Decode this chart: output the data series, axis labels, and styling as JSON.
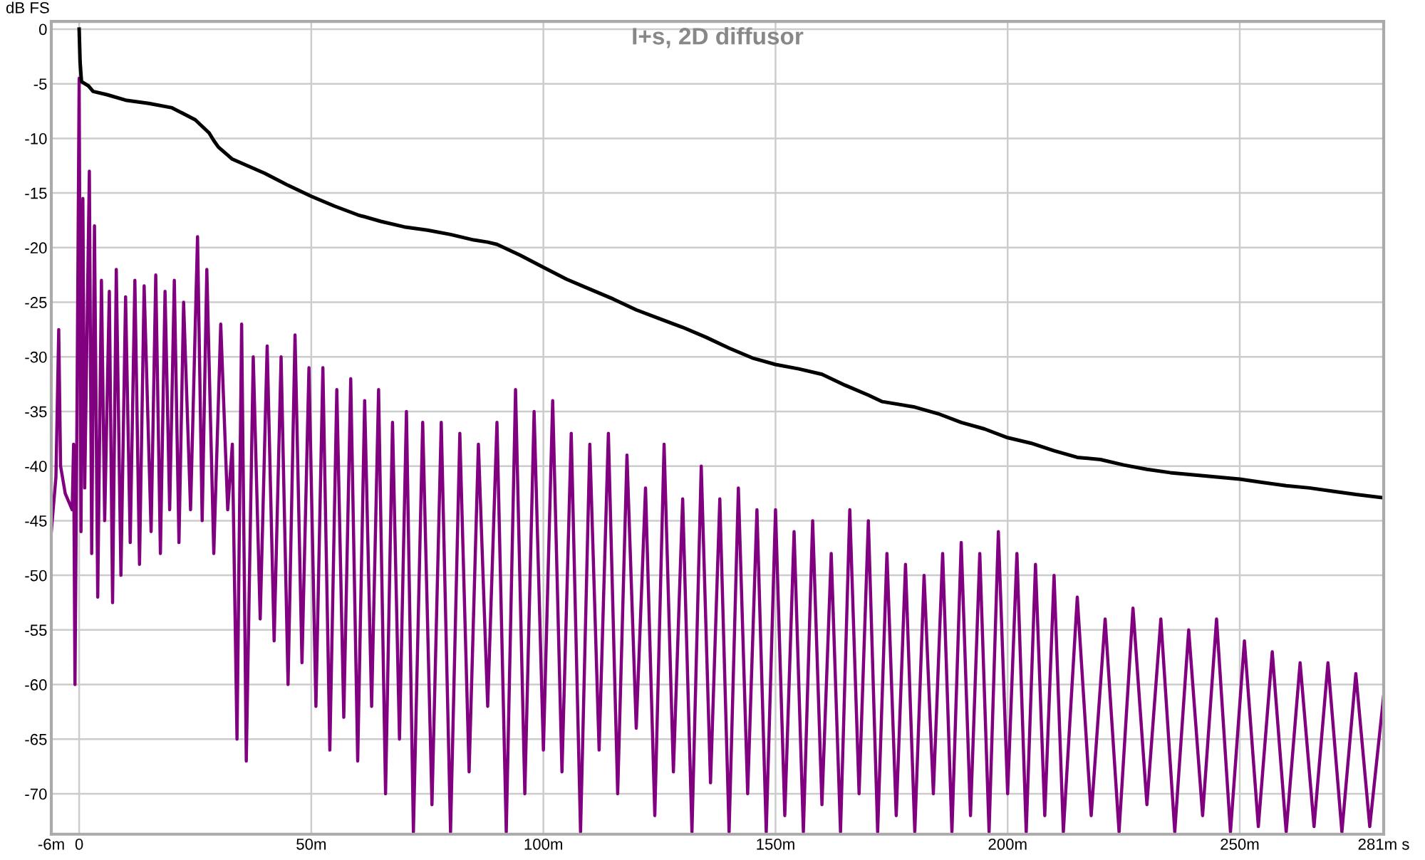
{
  "chart_data": {
    "type": "line",
    "title": "I+s, 2D diffusor",
    "ylabel": "dB FS",
    "xlim": [
      -6,
      281
    ],
    "xticks": [
      {
        "value": -6,
        "label": "-6m"
      },
      0,
      {
        "value": 50,
        "label": "50m"
      },
      {
        "value": 100,
        "label": "100m"
      },
      {
        "value": 150,
        "label": "150m"
      },
      {
        "value": 200,
        "label": "200m"
      },
      {
        "value": 250,
        "label": "250m"
      },
      {
        "value": 281,
        "label": "281m s"
      }
    ],
    "ylim": [
      -73.7,
      0.7
    ],
    "yticks": [
      0,
      -5,
      -10,
      -15,
      -20,
      -25,
      -30,
      -35,
      -40,
      -45,
      -50,
      -55,
      -60,
      -65,
      -70
    ],
    "grid": true,
    "legend": false,
    "marker": "none",
    "line_style": "solid",
    "series": [
      {
        "color": "#800080",
        "x": [
          -6,
          -5,
          -4.4,
          -4,
          -3,
          -1.5,
          -1.2,
          -0.9,
          -0.5,
          0,
          0.4,
          0.8,
          1.2,
          2.2,
          2.7,
          3.3,
          4,
          4.8,
          5.5,
          6.5,
          7.2,
          8,
          9,
          10,
          11,
          12,
          13,
          14,
          15.5,
          16.5,
          17.5,
          18.5,
          19.5,
          20.5,
          21.5,
          22.5,
          24,
          25.5,
          26.5,
          27.5,
          29,
          30.5,
          32,
          33,
          34,
          35,
          36,
          37.5,
          39,
          40.5,
          42,
          43.5,
          45,
          46.5,
          48,
          49.5,
          51,
          52.5,
          54,
          55.5,
          57,
          58.5,
          60,
          61.5,
          63,
          64.5,
          66,
          67.5,
          69,
          70.5,
          72,
          74,
          76,
          78,
          80,
          82,
          84,
          86,
          88,
          90,
          92,
          94,
          96,
          98,
          100,
          102,
          104,
          106,
          108,
          110,
          112,
          114,
          116,
          118,
          120,
          122,
          124,
          126,
          128,
          130,
          132,
          134,
          136,
          138,
          140,
          142,
          144,
          146,
          148,
          150,
          152,
          154,
          156,
          158,
          160,
          162,
          164,
          166,
          168,
          170,
          172,
          174,
          176,
          178,
          180,
          182,
          184,
          186,
          188,
          190,
          192,
          194,
          196,
          198,
          200,
          202,
          204,
          206,
          208,
          210,
          212,
          215,
          218,
          221,
          224,
          227,
          230,
          233,
          236,
          239,
          242,
          245,
          248,
          251,
          254,
          257,
          260,
          263,
          266,
          269,
          272,
          275,
          278,
          281
        ],
        "values": [
          -46,
          -41,
          -27.5,
          -40,
          -42.5,
          -44,
          -38,
          -60,
          -37,
          -4.5,
          -46,
          -15.5,
          -42,
          -13,
          -48,
          -18,
          -52,
          -23,
          -45,
          -24,
          -52.5,
          -22,
          -50,
          -24.5,
          -47,
          -23,
          -49,
          -23.5,
          -46,
          -22.5,
          -48,
          -24,
          -44,
          -23,
          -47,
          -25,
          -44,
          -19,
          -45,
          -22,
          -48,
          -27,
          -44,
          -38,
          -65,
          -27,
          -67,
          -30,
          -54,
          -29,
          -56,
          -30,
          -60,
          -28,
          -58,
          -31,
          -62,
          -31,
          -66,
          -33,
          -63,
          -32,
          -67,
          -34,
          -62,
          -33,
          -70,
          -36,
          -65,
          -35,
          -73.5,
          -36,
          -71,
          -36,
          -73.5,
          -37,
          -68,
          -38,
          -62,
          -36,
          -73.5,
          -33,
          -70,
          -35,
          -66,
          -34,
          -68,
          -37,
          -73.5,
          -38,
          -66,
          -37,
          -70,
          -39,
          -64,
          -42,
          -72,
          -38,
          -68,
          -43,
          -73.5,
          -40,
          -69,
          -43,
          -73.5,
          -42,
          -70,
          -44,
          -73.5,
          -44,
          -72,
          -46,
          -73.5,
          -45,
          -71,
          -48,
          -73.5,
          -44,
          -70,
          -45,
          -73.5,
          -48,
          -72,
          -49,
          -73.5,
          -50,
          -70,
          -48,
          -73.5,
          -47,
          -72,
          -48,
          -73.5,
          -46,
          -70,
          -48,
          -73.5,
          -49,
          -72,
          -50,
          -73.5,
          -52,
          -72,
          -54,
          -73.5,
          -53,
          -71,
          -54,
          -73.5,
          -55,
          -72,
          -54,
          -73.5,
          -56,
          -73,
          -57,
          -73.5,
          -58,
          -73,
          -58,
          -73.5,
          -59,
          -73,
          -61
        ]
      },
      {
        "color": "#000000",
        "x": [
          0,
          0.2,
          0.5,
          2,
          3,
          6,
          10,
          15,
          20,
          25,
          28,
          29,
          30,
          33,
          40,
          45,
          50,
          55,
          60,
          65,
          70,
          75,
          80,
          85,
          88,
          90,
          95,
          100,
          105,
          110,
          115,
          120,
          125,
          130,
          135,
          140,
          145,
          150,
          155,
          160,
          165,
          170,
          173,
          180,
          185,
          190,
          195,
          200,
          205,
          210,
          215,
          220,
          225,
          230,
          235,
          240,
          245,
          250,
          255,
          260,
          265,
          270,
          275,
          281
        ],
        "values": [
          0,
          -3,
          -4.8,
          -5.2,
          -5.7,
          -6,
          -6.5,
          -6.8,
          -7.2,
          -8.3,
          -9.5,
          -10.2,
          -10.8,
          -11.9,
          -13.2,
          -14.3,
          -15.3,
          -16.2,
          -17,
          -17.6,
          -18.1,
          -18.4,
          -18.8,
          -19.3,
          -19.5,
          -19.7,
          -20.7,
          -21.8,
          -22.9,
          -23.8,
          -24.7,
          -25.7,
          -26.5,
          -27.3,
          -28.2,
          -29.2,
          -30.1,
          -30.7,
          -31.1,
          -31.6,
          -32.6,
          -33.5,
          -34.1,
          -34.6,
          -35.2,
          -36,
          -36.6,
          -37.4,
          -37.9,
          -38.6,
          -39.2,
          -39.4,
          -39.9,
          -40.3,
          -40.6,
          -40.8,
          -41,
          -41.2,
          -41.5,
          -41.8,
          -42,
          -42.3,
          -42.6,
          -42.9
        ]
      }
    ]
  }
}
